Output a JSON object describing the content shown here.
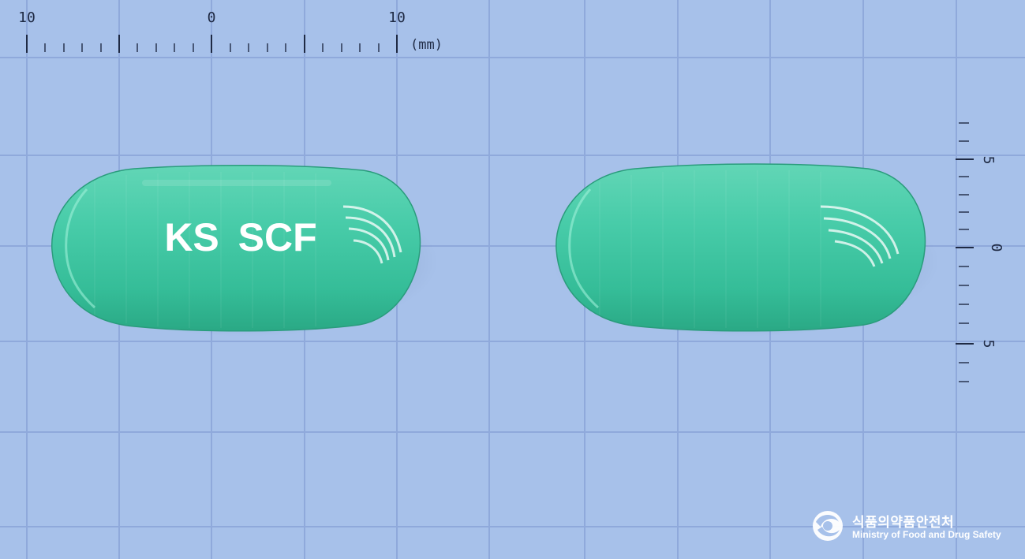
{
  "scale": {
    "unit_label": "(mm)",
    "horizontal_labels": [
      "10",
      "0",
      "10"
    ],
    "vertical_labels": [
      "5",
      "0",
      "5"
    ]
  },
  "pills": [
    {
      "id": "front",
      "imprint": "KS SCF",
      "color": "#3fc9a5"
    },
    {
      "id": "back",
      "imprint": "",
      "color": "#3fc9a5"
    }
  ],
  "watermark": {
    "name_ko": "식품의약품안전처",
    "name_en": "Ministry of Food and Drug Safety",
    "icon": "mfds-logo-icon"
  },
  "colors": {
    "background": "#a7c1ea",
    "grid": "#8fa9db",
    "ruler": "#1f2a44",
    "capsule": "#3fc9a5"
  }
}
